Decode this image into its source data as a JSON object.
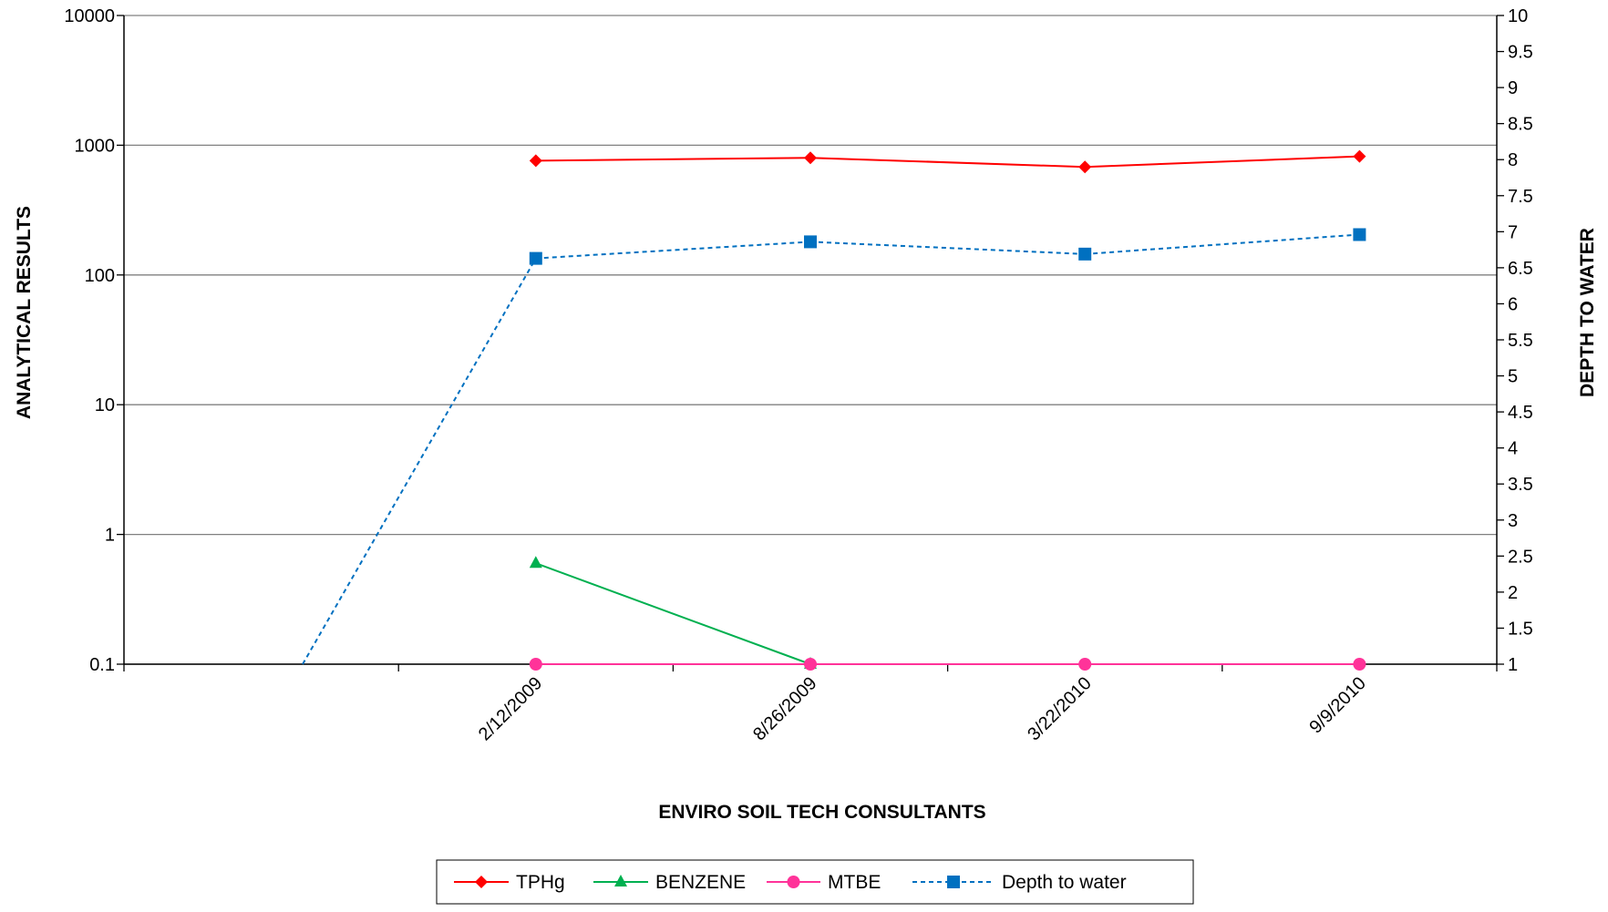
{
  "chart_data": {
    "type": "line",
    "categories": [
      "",
      "2/12/2009",
      "8/26/2009",
      "3/22/2010",
      "9/9/2010"
    ],
    "xlabel": "ENVIRO SOIL TECH CONSULTANTS",
    "ylabel": "ANALYTICAL RESULTS",
    "y2label": "DEPTH TO WATER",
    "y_scale": "log",
    "ylim": [
      0.1,
      10000
    ],
    "y_ticks": [
      "10000",
      "1000",
      "100",
      "10",
      "1",
      "0.1"
    ],
    "y2lim": [
      1,
      10
    ],
    "y2_ticks": [
      "10",
      "9.5",
      "9",
      "8.5",
      "8",
      "7.5",
      "7",
      "6.5",
      "6",
      "5.5",
      "5",
      "4.5",
      "4",
      "3.5",
      "3",
      "2.5",
      "2",
      "1.5",
      "1"
    ],
    "grid": "horizontal major gridlines",
    "legend_position": "bottom",
    "series": [
      {
        "name": "TPHg",
        "axis": "left",
        "color": "#ff0000",
        "marker": "diamond",
        "line": "solid",
        "values": [
          null,
          760,
          800,
          680,
          820
        ]
      },
      {
        "name": "BENZENE",
        "axis": "left",
        "color": "#00b050",
        "marker": "triangle",
        "line": "solid",
        "values": [
          null,
          0.6,
          0.1,
          null,
          null
        ]
      },
      {
        "name": "MTBE",
        "axis": "left",
        "color": "#ff3399",
        "marker": "circle",
        "line": "solid",
        "values": [
          null,
          0.1,
          0.1,
          0.1,
          0.1
        ]
      },
      {
        "name": "Depth to water",
        "axis": "right",
        "color": "#0070c0",
        "marker": "square",
        "line": "dashed",
        "values": [
          0,
          6.63,
          6.86,
          6.69,
          6.96
        ]
      }
    ]
  }
}
